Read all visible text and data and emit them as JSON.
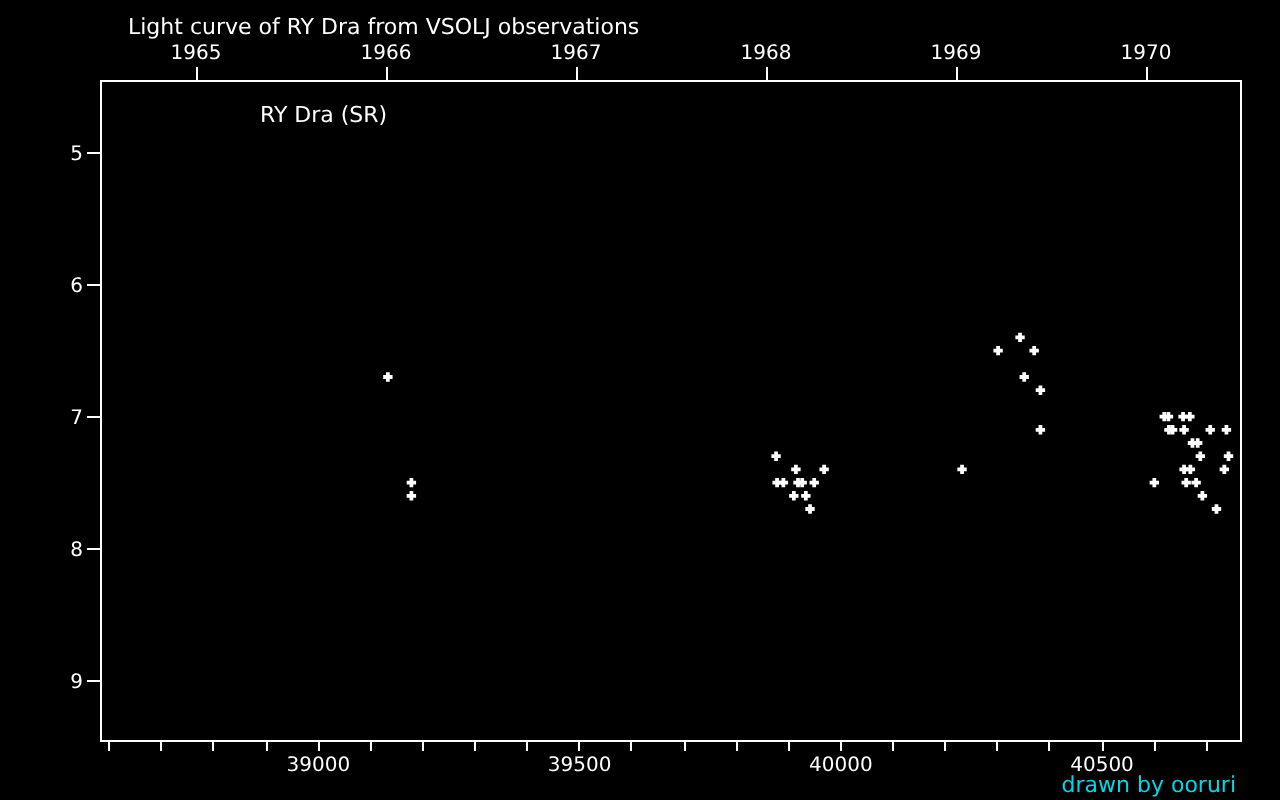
{
  "chart_data": {
    "type": "scatter",
    "title": "Light curve of RY Dra from VSOLJ observations",
    "annotations": [
      "RY Dra (SR)",
      "drawn by ooruri"
    ],
    "series": [
      {
        "color": "#ffffff",
        "x": [
          39135,
          39180,
          39180,
          39878,
          39916,
          39970,
          39880,
          39892,
          39920,
          39928,
          39951,
          39912,
          39935,
          39943,
          40345,
          40303,
          40372,
          40353,
          40384,
          40384,
          40234,
          40621,
          40629,
          40657,
          40670,
          40630,
          40637,
          40659,
          40709,
          40740,
          40675,
          40685,
          40690,
          40744,
          40659,
          40671,
          40736,
          40602,
          40663,
          40682,
          40694,
          40721
        ],
        "values": [
          6.7,
          7.5,
          7.6,
          7.3,
          7.4,
          7.4,
          7.5,
          7.5,
          7.5,
          7.5,
          7.5,
          7.6,
          7.6,
          7.7,
          6.4,
          6.5,
          6.5,
          6.7,
          6.8,
          7.1,
          7.4,
          7.0,
          7.0,
          7.0,
          7.0,
          7.1,
          7.1,
          7.1,
          7.1,
          7.1,
          7.2,
          7.2,
          7.3,
          7.3,
          7.4,
          7.4,
          7.4,
          7.5,
          7.5,
          7.5,
          7.6,
          7.7
        ]
      }
    ],
    "marker": "cross",
    "legend": false,
    "grid": false,
    "xlim": [
      38584,
      40766
    ],
    "xticks": [
      {
        "value": 38600,
        "label": null
      },
      {
        "value": 38700,
        "label": null
      },
      {
        "value": 38800,
        "label": null
      },
      {
        "value": 38900,
        "label": null
      },
      39000,
      {
        "value": 39100,
        "label": null
      },
      {
        "value": 39200,
        "label": null
      },
      {
        "value": 39300,
        "label": null
      },
      {
        "value": 39400,
        "label": null
      },
      39500,
      {
        "value": 39600,
        "label": null
      },
      {
        "value": 39700,
        "label": null
      },
      {
        "value": 39800,
        "label": null
      },
      {
        "value": 39900,
        "label": null
      },
      40000,
      {
        "value": 40100,
        "label": null
      },
      {
        "value": 40200,
        "label": null
      },
      {
        "value": 40300,
        "label": null
      },
      {
        "value": 40400,
        "label": null
      },
      40500,
      {
        "value": 40600,
        "label": null
      },
      {
        "value": 40700,
        "label": null
      }
    ],
    "ylim": [
      9.45,
      4.45
    ],
    "yticks": [
      5,
      6,
      7,
      8,
      9
    ],
    "x2lim": [
      1964.5,
      1970.5
    ],
    "x2ticks": [
      1965,
      1966,
      1967,
      1968,
      1969,
      1970
    ]
  }
}
